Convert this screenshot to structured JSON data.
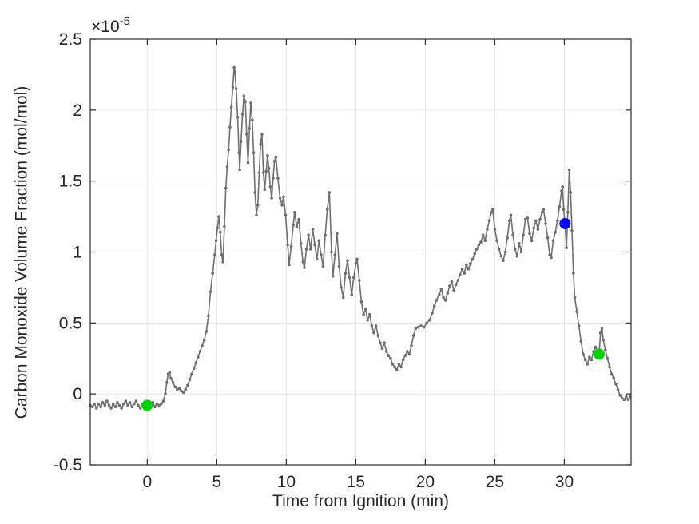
{
  "figure": {
    "background": "#ffffff",
    "title": ""
  },
  "chart_data": {
    "type": "line",
    "title": "",
    "xlabel": "Time from Ignition (min)",
    "ylabel": "Carbon Monoxide Volume Fraction (mol/mol)",
    "y_exponent": {
      "base": "×10",
      "power": "-5"
    },
    "y_value_scale": 1e-05,
    "xlim": [
      -4.1,
      34.8
    ],
    "ylim": [
      -0.5,
      2.5
    ],
    "x_ticks": [
      0,
      5,
      10,
      15,
      20,
      25,
      30
    ],
    "x_tick_labels": [
      "0",
      "5",
      "10",
      "15",
      "20",
      "25",
      "30"
    ],
    "y_ticks": [
      -0.5,
      0,
      0.5,
      1,
      1.5,
      2,
      2.5
    ],
    "y_tick_labels": [
      "-0.5",
      "0",
      "0.5",
      "1",
      "1.5",
      "2",
      "2.5"
    ],
    "grid": true,
    "legend": null,
    "colors": {
      "grid": "#e7e7e7",
      "axis": "#2b2b2b",
      "text": "#262626",
      "series": "#6e6e6e",
      "marker_green": "#00d400",
      "marker_blue": "#0000f0"
    },
    "series": [
      {
        "name": "co-volume-fraction",
        "color": "#6e6e6e",
        "marker": "dot",
        "points": [
          [
            -4.1,
            -0.08
          ],
          [
            -3.95,
            -0.09
          ],
          [
            -3.8,
            -0.07
          ],
          [
            -3.65,
            -0.1
          ],
          [
            -3.5,
            -0.07
          ],
          [
            -3.35,
            -0.09
          ],
          [
            -3.2,
            -0.06
          ],
          [
            -3.05,
            -0.08
          ],
          [
            -2.9,
            -0.05
          ],
          [
            -2.75,
            -0.08
          ],
          [
            -2.6,
            -0.1
          ],
          [
            -2.45,
            -0.07
          ],
          [
            -2.3,
            -0.09
          ],
          [
            -2.15,
            -0.06
          ],
          [
            -2.0,
            -0.08
          ],
          [
            -1.85,
            -0.1
          ],
          [
            -1.7,
            -0.07
          ],
          [
            -1.55,
            -0.05
          ],
          [
            -1.4,
            -0.08
          ],
          [
            -1.25,
            -0.06
          ],
          [
            -1.1,
            -0.09
          ],
          [
            -0.95,
            -0.07
          ],
          [
            -0.8,
            -0.05
          ],
          [
            -0.65,
            -0.08
          ],
          [
            -0.5,
            -0.1
          ],
          [
            -0.35,
            -0.07
          ],
          [
            -0.2,
            -0.09
          ],
          [
            -0.05,
            -0.08
          ],
          [
            0.1,
            -0.07
          ],
          [
            0.25,
            -0.08
          ],
          [
            0.4,
            -0.06
          ],
          [
            0.55,
            -0.09
          ],
          [
            0.7,
            -0.07
          ],
          [
            0.85,
            -0.08
          ],
          [
            1.0,
            -0.07
          ],
          [
            1.15,
            -0.05
          ],
          [
            1.3,
            0.0
          ],
          [
            1.4,
            0.08
          ],
          [
            1.5,
            0.14
          ],
          [
            1.6,
            0.15
          ],
          [
            1.7,
            0.11
          ],
          [
            1.85,
            0.08
          ],
          [
            2.0,
            0.05
          ],
          [
            2.15,
            0.03
          ],
          [
            2.3,
            0.04
          ],
          [
            2.45,
            0.02
          ],
          [
            2.6,
            0.01
          ],
          [
            2.75,
            0.03
          ],
          [
            2.9,
            0.06
          ],
          [
            3.05,
            0.1
          ],
          [
            3.2,
            0.14
          ],
          [
            3.35,
            0.18
          ],
          [
            3.5,
            0.22
          ],
          [
            3.65,
            0.26
          ],
          [
            3.8,
            0.3
          ],
          [
            3.95,
            0.34
          ],
          [
            4.1,
            0.38
          ],
          [
            4.25,
            0.44
          ],
          [
            4.4,
            0.55
          ],
          [
            4.55,
            0.72
          ],
          [
            4.7,
            0.85
          ],
          [
            4.85,
            0.98
          ],
          [
            4.95,
            1.08
          ],
          [
            5.05,
            1.17
          ],
          [
            5.15,
            1.25
          ],
          [
            5.25,
            1.14
          ],
          [
            5.35,
            0.98
          ],
          [
            5.45,
            0.93
          ],
          [
            5.55,
            1.18
          ],
          [
            5.65,
            1.45
          ],
          [
            5.75,
            1.6
          ],
          [
            5.85,
            1.72
          ],
          [
            5.95,
            1.88
          ],
          [
            6.05,
            2.02
          ],
          [
            6.15,
            2.16
          ],
          [
            6.25,
            2.3
          ],
          [
            6.3,
            2.27
          ],
          [
            6.4,
            2.15
          ],
          [
            6.5,
            1.95
          ],
          [
            6.6,
            1.7
          ],
          [
            6.65,
            1.58
          ],
          [
            6.75,
            1.78
          ],
          [
            6.85,
            1.97
          ],
          [
            6.95,
            2.1
          ],
          [
            7.05,
            2.06
          ],
          [
            7.15,
            1.83
          ],
          [
            7.25,
            1.63
          ],
          [
            7.35,
            1.87
          ],
          [
            7.45,
            2.05
          ],
          [
            7.55,
            1.93
          ],
          [
            7.65,
            1.7
          ],
          [
            7.75,
            1.42
          ],
          [
            7.85,
            1.26
          ],
          [
            7.95,
            1.33
          ],
          [
            8.05,
            1.56
          ],
          [
            8.15,
            1.76
          ],
          [
            8.25,
            1.83
          ],
          [
            8.35,
            1.56
          ],
          [
            8.45,
            1.44
          ],
          [
            8.55,
            1.57
          ],
          [
            8.65,
            1.68
          ],
          [
            8.75,
            1.59
          ],
          [
            8.85,
            1.46
          ],
          [
            8.95,
            1.38
          ],
          [
            9.05,
            1.52
          ],
          [
            9.15,
            1.64
          ],
          [
            9.25,
            1.67
          ],
          [
            9.4,
            1.52
          ],
          [
            9.55,
            1.38
          ],
          [
            9.7,
            1.33
          ],
          [
            9.8,
            1.39
          ],
          [
            9.95,
            1.26
          ],
          [
            10.1,
            1.05
          ],
          [
            10.2,
            0.91
          ],
          [
            10.35,
            1.04
          ],
          [
            10.5,
            1.19
          ],
          [
            10.6,
            1.28
          ],
          [
            10.75,
            1.18
          ],
          [
            10.9,
            1.23
          ],
          [
            11.05,
            1.06
          ],
          [
            11.2,
            0.93
          ],
          [
            11.3,
            0.89
          ],
          [
            11.45,
            1.02
          ],
          [
            11.6,
            1.12
          ],
          [
            11.75,
            1.02
          ],
          [
            11.9,
            1.16
          ],
          [
            12.05,
            1.05
          ],
          [
            12.2,
            0.95
          ],
          [
            12.35,
            1.08
          ],
          [
            12.5,
            0.98
          ],
          [
            12.65,
            0.9
          ],
          [
            12.8,
            1.12
          ],
          [
            12.95,
            1.3
          ],
          [
            13.1,
            1.42
          ],
          [
            13.25,
            1.0
          ],
          [
            13.35,
            0.83
          ],
          [
            13.5,
            0.98
          ],
          [
            13.65,
            1.13
          ],
          [
            13.8,
            0.9
          ],
          [
            13.95,
            0.75
          ],
          [
            14.1,
            0.68
          ],
          [
            14.25,
            0.85
          ],
          [
            14.4,
            0.94
          ],
          [
            14.55,
            0.82
          ],
          [
            14.7,
            0.7
          ],
          [
            14.85,
            0.82
          ],
          [
            15.0,
            0.92
          ],
          [
            15.1,
            0.95
          ],
          [
            15.25,
            0.8
          ],
          [
            15.4,
            0.65
          ],
          [
            15.55,
            0.56
          ],
          [
            15.7,
            0.6
          ],
          [
            15.85,
            0.52
          ],
          [
            16.0,
            0.56
          ],
          [
            16.15,
            0.48
          ],
          [
            16.3,
            0.43
          ],
          [
            16.45,
            0.48
          ],
          [
            16.6,
            0.41
          ],
          [
            16.75,
            0.36
          ],
          [
            16.9,
            0.32
          ],
          [
            17.05,
            0.36
          ],
          [
            17.2,
            0.3
          ],
          [
            17.35,
            0.27
          ],
          [
            17.5,
            0.25
          ],
          [
            17.65,
            0.21
          ],
          [
            17.8,
            0.19
          ],
          [
            17.95,
            0.17
          ],
          [
            18.1,
            0.21
          ],
          [
            18.25,
            0.19
          ],
          [
            18.4,
            0.24
          ],
          [
            18.55,
            0.27
          ],
          [
            18.7,
            0.3
          ],
          [
            18.85,
            0.28
          ],
          [
            19.0,
            0.34
          ],
          [
            19.15,
            0.41
          ],
          [
            19.3,
            0.46
          ],
          [
            19.5,
            0.47
          ],
          [
            19.7,
            0.48
          ],
          [
            19.9,
            0.47
          ],
          [
            20.1,
            0.5
          ],
          [
            20.3,
            0.52
          ],
          [
            20.5,
            0.57
          ],
          [
            20.65,
            0.62
          ],
          [
            20.8,
            0.66
          ],
          [
            21.0,
            0.7
          ],
          [
            21.15,
            0.74
          ],
          [
            21.3,
            0.68
          ],
          [
            21.45,
            0.66
          ],
          [
            21.6,
            0.71
          ],
          [
            21.75,
            0.76
          ],
          [
            21.9,
            0.79
          ],
          [
            22.05,
            0.73
          ],
          [
            22.2,
            0.77
          ],
          [
            22.35,
            0.8
          ],
          [
            22.5,
            0.84
          ],
          [
            22.65,
            0.88
          ],
          [
            22.8,
            0.85
          ],
          [
            22.95,
            0.91
          ],
          [
            23.1,
            0.88
          ],
          [
            23.25,
            0.92
          ],
          [
            23.4,
            0.95
          ],
          [
            23.55,
            0.99
          ],
          [
            23.7,
            1.02
          ],
          [
            23.85,
            1.05
          ],
          [
            24.0,
            1.07
          ],
          [
            24.15,
            1.12
          ],
          [
            24.3,
            1.08
          ],
          [
            24.45,
            1.16
          ],
          [
            24.6,
            1.22
          ],
          [
            24.75,
            1.28
          ],
          [
            24.85,
            1.3
          ],
          [
            25.0,
            1.16
          ],
          [
            25.15,
            1.08
          ],
          [
            25.3,
            1.02
          ],
          [
            25.45,
            0.97
          ],
          [
            25.6,
            0.94
          ],
          [
            25.75,
            1.0
          ],
          [
            25.9,
            1.1
          ],
          [
            26.05,
            1.22
          ],
          [
            26.15,
            1.26
          ],
          [
            26.3,
            1.12
          ],
          [
            26.45,
            1.02
          ],
          [
            26.6,
            0.97
          ],
          [
            26.75,
            1.06
          ],
          [
            26.9,
            1.0
          ],
          [
            27.05,
            1.12
          ],
          [
            27.2,
            1.23
          ],
          [
            27.35,
            1.24
          ],
          [
            27.5,
            1.13
          ],
          [
            27.65,
            1.08
          ],
          [
            27.8,
            1.17
          ],
          [
            27.95,
            1.22
          ],
          [
            28.1,
            1.16
          ],
          [
            28.25,
            1.23
          ],
          [
            28.4,
            1.28
          ],
          [
            28.5,
            1.3
          ],
          [
            28.65,
            1.2
          ],
          [
            28.8,
            1.1
          ],
          [
            28.95,
            0.98
          ],
          [
            29.05,
            0.96
          ],
          [
            29.2,
            1.08
          ],
          [
            29.35,
            1.14
          ],
          [
            29.5,
            1.22
          ],
          [
            29.65,
            1.32
          ],
          [
            29.8,
            1.43
          ],
          [
            29.87,
            1.46
          ],
          [
            29.95,
            1.3
          ],
          [
            30.05,
            1.2
          ],
          [
            30.15,
            1.03
          ],
          [
            30.25,
            1.28
          ],
          [
            30.35,
            1.58
          ],
          [
            30.45,
            1.42
          ],
          [
            30.55,
            1.15
          ],
          [
            30.65,
            0.85
          ],
          [
            30.75,
            0.68
          ],
          [
            30.9,
            0.58
          ],
          [
            31.05,
            0.48
          ],
          [
            31.2,
            0.37
          ],
          [
            31.35,
            0.28
          ],
          [
            31.5,
            0.24
          ],
          [
            31.65,
            0.21
          ],
          [
            31.8,
            0.26
          ],
          [
            31.95,
            0.24
          ],
          [
            32.1,
            0.3
          ],
          [
            32.25,
            0.33
          ],
          [
            32.4,
            0.28
          ],
          [
            32.5,
            0.28
          ],
          [
            32.6,
            0.43
          ],
          [
            32.7,
            0.46
          ],
          [
            32.8,
            0.38
          ],
          [
            32.95,
            0.31
          ],
          [
            33.1,
            0.25
          ],
          [
            33.25,
            0.19
          ],
          [
            33.4,
            0.14
          ],
          [
            33.55,
            0.11
          ],
          [
            33.7,
            0.07
          ],
          [
            33.85,
            0.03
          ],
          [
            34.0,
            -0.01
          ],
          [
            34.15,
            -0.03
          ],
          [
            34.3,
            -0.04
          ],
          [
            34.45,
            -0.02
          ],
          [
            34.6,
            -0.04
          ],
          [
            34.72,
            -0.02
          ]
        ]
      }
    ],
    "event_markers": [
      {
        "name": "ignition-start-marker",
        "color": "#00d400",
        "x": 0,
        "y": -0.08
      },
      {
        "name": "blue-event-marker",
        "color": "#0000f0",
        "x": 30.05,
        "y": 1.2
      },
      {
        "name": "end-event-marker",
        "color": "#00d400",
        "x": 32.5,
        "y": 0.28
      }
    ]
  }
}
